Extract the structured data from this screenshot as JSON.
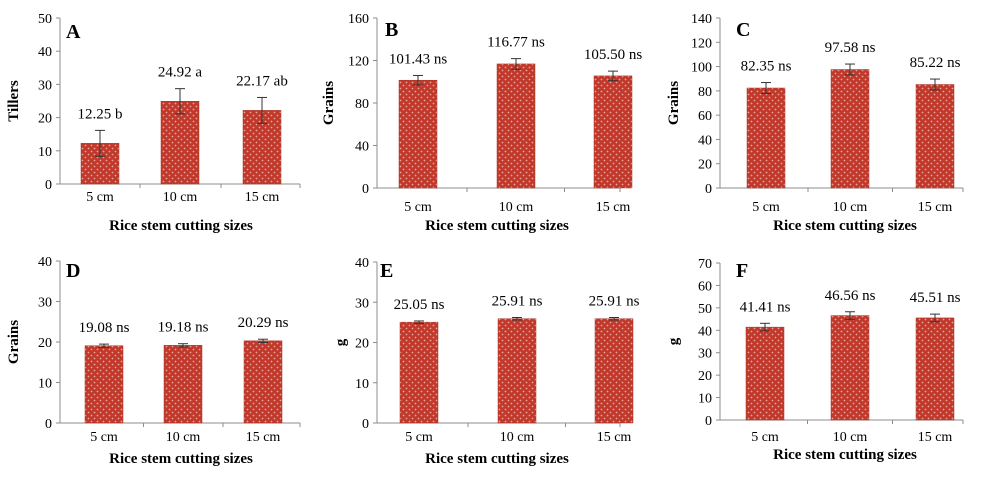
{
  "chart_data": [
    {
      "type": "bar",
      "panel_letter": "A",
      "categories": [
        "5 cm",
        "10 cm",
        "15 cm"
      ],
      "values": [
        12.25,
        24.92,
        22.17
      ],
      "errors": [
        3.9,
        3.8,
        3.9
      ],
      "data_labels": [
        "12.25 b",
        "24.92 a",
        "22.17 ab"
      ],
      "ylabel": "Tillers",
      "xlabel": "Rice stem cutting sizes",
      "ylim": [
        0,
        50
      ],
      "yticks": [
        0,
        10,
        20,
        30,
        40,
        50
      ],
      "grid": false
    },
    {
      "type": "bar",
      "panel_letter": "B",
      "categories": [
        "5 cm",
        "10 cm",
        "15 cm"
      ],
      "values": [
        101.43,
        116.77,
        105.5
      ],
      "errors": [
        4.5,
        5.0,
        4.5
      ],
      "data_labels": [
        "101.43 ns",
        "116.77 ns",
        "105.50 ns"
      ],
      "ylabel": "Grains",
      "xlabel": "Rice stem cutting sizes",
      "ylim": [
        0,
        160
      ],
      "yticks": [
        0,
        40,
        80,
        120,
        160
      ],
      "grid": false
    },
    {
      "type": "bar",
      "panel_letter": "C",
      "categories": [
        "5 cm",
        "10 cm",
        "15 cm"
      ],
      "values": [
        82.35,
        97.58,
        85.22
      ],
      "errors": [
        4.5,
        4.5,
        4.5
      ],
      "data_labels": [
        "82.35 ns",
        "97.58 ns",
        "85.22 ns"
      ],
      "ylabel": "Grains",
      "xlabel": "Rice stem cutting sizes",
      "ylim": [
        0,
        140
      ],
      "yticks": [
        0,
        20,
        40,
        60,
        80,
        100,
        120,
        140
      ],
      "grid": false
    },
    {
      "type": "bar",
      "panel_letter": "D",
      "categories": [
        "5 cm",
        "10 cm",
        "15 cm"
      ],
      "values": [
        19.08,
        19.18,
        20.29
      ],
      "errors": [
        0.4,
        0.4,
        0.4
      ],
      "data_labels": [
        "19.08 ns",
        "19.18 ns",
        "20.29 ns"
      ],
      "ylabel": "Grains",
      "xlabel": "Rice stem cutting sizes",
      "ylim": [
        0,
        40
      ],
      "yticks": [
        0,
        10,
        20,
        30,
        40
      ],
      "grid": false
    },
    {
      "type": "bar",
      "panel_letter": "E",
      "categories": [
        "5 cm",
        "10 cm",
        "15 cm"
      ],
      "values": [
        25.05,
        25.91,
        25.91
      ],
      "errors": [
        0.3,
        0.3,
        0.3
      ],
      "data_labels": [
        "25.05 ns",
        "25.91 ns",
        "25.91 ns"
      ],
      "ylabel": "g",
      "xlabel": "Rice stem cutting sizes",
      "ylim": [
        0,
        40
      ],
      "yticks": [
        0,
        10,
        20,
        30,
        40
      ],
      "grid": false
    },
    {
      "type": "bar",
      "panel_letter": "F",
      "categories": [
        "5 cm",
        "10 cm",
        "15 cm"
      ],
      "values": [
        41.41,
        46.56,
        45.51
      ],
      "errors": [
        1.7,
        1.7,
        1.7
      ],
      "data_labels": [
        "41.41 ns",
        "46.56 ns",
        "45.51 ns"
      ],
      "ylabel": "g",
      "xlabel": "Rice stem cutting sizes",
      "ylim": [
        0,
        70
      ],
      "yticks": [
        0,
        10,
        20,
        30,
        40,
        50,
        60,
        70
      ],
      "grid": false
    }
  ],
  "style": {
    "bar_color": "#c0392b",
    "bar_dot_color": "#e8a59d",
    "axis_color": "#8c8c8c",
    "text_color": "#000000"
  }
}
